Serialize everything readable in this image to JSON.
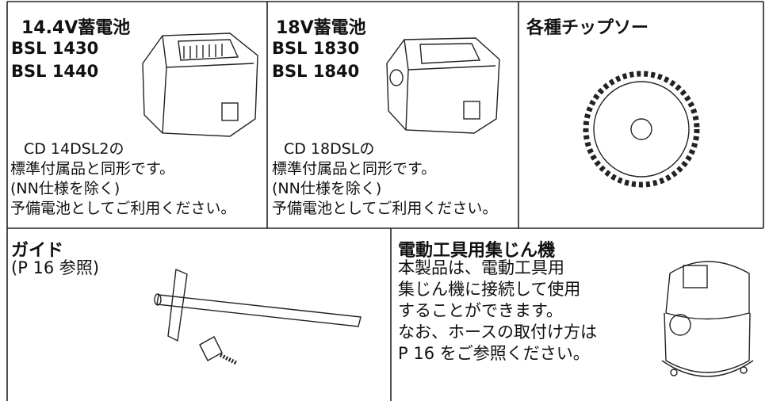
{
  "cells": [
    {
      "title": "14.4V蓄電池",
      "models": [
        "BSL 1430",
        "BSL 1440"
      ],
      "lines": [
        "CD 14DSL2の",
        "標準付属品と同形です。",
        "(NN仕様を除く)",
        "予備電池としてご利用ください。"
      ]
    },
    {
      "title": "18V蓄電池",
      "models": [
        "BSL 1830",
        "BSL 1840"
      ],
      "lines": [
        "CD 18DSLの",
        "標準付属品と同形です。",
        "(NN仕様を除く)",
        "予備電池としてご利用ください。"
      ]
    },
    {
      "title": "各種チップソー"
    },
    {
      "title": "ガイド",
      "lines": [
        "(P 16 参照)"
      ]
    },
    {
      "title": "電動工具用集じん機",
      "lines": [
        "本製品は、電動工具用",
        "集じん機に接続して使用",
        "することができます。",
        "なお、ホースの取付け方は",
        "P 16 をご参照ください。"
      ]
    }
  ]
}
